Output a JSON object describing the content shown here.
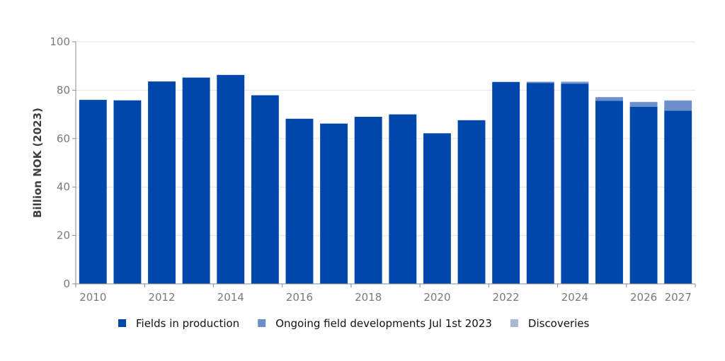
{
  "chart_data": {
    "type": "bar",
    "stacked": true,
    "categories": [
      "2010",
      "2011",
      "2012",
      "2013",
      "2014",
      "2015",
      "2016",
      "2017",
      "2018",
      "2019",
      "2020",
      "2021",
      "2022",
      "2023",
      "2024",
      "2025",
      "2026",
      "2027"
    ],
    "x_tick_labels": [
      "2010",
      "2012",
      "2014",
      "2016",
      "2018",
      "2020",
      "2022",
      "2024",
      "2026",
      "2027"
    ],
    "series": [
      {
        "name": "Fields in production",
        "color": "#0047ab",
        "values": [
          76.0,
          75.8,
          83.6,
          85.2,
          86.3,
          77.9,
          68.2,
          66.2,
          69.0,
          70.0,
          62.2,
          67.6,
          83.4,
          83.0,
          82.7,
          75.6,
          73.1,
          71.5
        ]
      },
      {
        "name": "Ongoing field developments Jul 1st 2023",
        "color": "#6a8fca",
        "values": [
          0,
          0,
          0,
          0,
          0,
          0,
          0,
          0,
          0,
          0,
          0,
          0,
          0,
          0.4,
          0.6,
          1.5,
          2.0,
          4.2
        ]
      },
      {
        "name": "Discoveries",
        "color": "#a9b9d4",
        "values": [
          0,
          0,
          0,
          0,
          0,
          0,
          0,
          0,
          0,
          0,
          0,
          0,
          0,
          0.2,
          0.3,
          0.1,
          0.1,
          0.1
        ]
      }
    ],
    "title": "",
    "xlabel": "",
    "ylabel": "Billion NOK (2023)",
    "ylim": [
      0,
      100
    ],
    "yticks": [
      0,
      20,
      40,
      60,
      80,
      100
    ],
    "grid": true,
    "legend_position": "bottom"
  }
}
